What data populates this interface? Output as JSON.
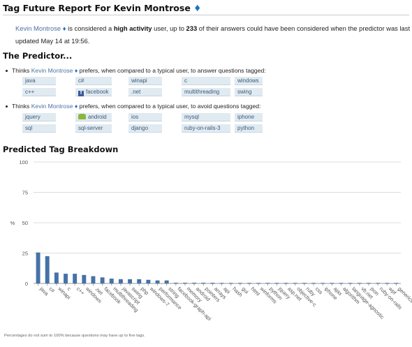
{
  "header": {
    "title": "Tag Future Report For Kevin Montrose",
    "title_icon": "blue-diamond"
  },
  "intro": {
    "user": "Kevin Montrose",
    "text1": " is considered a ",
    "activity": "high activity",
    "text2": " user, up to ",
    "count": "233",
    "text3": " of their answers could have been considered when the predictor was last updated May 14 at 19:56."
  },
  "predictor": {
    "heading": "The Predictor...",
    "prefers_bullet": {
      "prefix": "Thinks ",
      "user": "Kevin Montrose",
      "suffix": " prefers, when compared to a typical user, to answer questions tagged:"
    },
    "prefers_tags": [
      "java",
      "c#",
      "winapi",
      "c",
      "windows",
      "c++",
      "facebook",
      ".net",
      "multithreading",
      "swing"
    ],
    "avoids_bullet": {
      "prefix": "Thinks ",
      "user": "Kevin Montrose",
      "suffix": " prefers, when compared to a typical user, to avoid questions tagged:"
    },
    "avoids_tags": [
      "jquery",
      "android",
      "ios",
      "mysql",
      "iphone",
      "sql",
      "sql-server",
      "django",
      "ruby-on-rails-3",
      "python"
    ]
  },
  "breakdown": {
    "heading": "Predicted Tag Breakdown",
    "footnote": "Percentages do not sum to 100% because questions may have up to five tags."
  },
  "colors": {
    "bar": "#4572a7",
    "tag_bg": "#e0eaf1",
    "link": "#4a72a6",
    "diamond": "#1a73c7"
  },
  "chart_data": {
    "type": "bar",
    "title": "",
    "xlabel": "",
    "ylabel": "%",
    "ylim": [
      0,
      100
    ],
    "yticks": [
      0,
      25,
      50,
      75,
      100
    ],
    "grid": true,
    "categories": [
      "java",
      "c#",
      "winapi",
      "c",
      "c++",
      "windows",
      ".net",
      "facebook",
      "multithreading",
      "javascript",
      "swing",
      "php",
      "windows-7",
      "performance",
      "string",
      "facebook-graph-api",
      "memory",
      "android",
      "pointers",
      "arrays",
      "api",
      "hash",
      "gui",
      "html",
      "winforms",
      "python",
      "jquery",
      "asp.net",
      "objective-c",
      "ruby",
      "css",
      "iphone",
      "ajax",
      "algorithm",
      "language-agnostic",
      "vb.net",
      "json",
      "ruby-on-rails",
      "wpf",
      "generics"
    ],
    "values": [
      25.5,
      22.5,
      9,
      8,
      8,
      7,
      6,
      5,
      4,
      3.5,
      3.5,
      3.5,
      3,
      2.5,
      2.5,
      0.6,
      0.6,
      0.6,
      0.6,
      0.6,
      0.5,
      0.5,
      0.5,
      0.5,
      0.5,
      0.5,
      0.5,
      0.5,
      0.5,
      0.5,
      0.5,
      0.5,
      0.5,
      0.5,
      0.5,
      0.5,
      0.5,
      0.5,
      0.5,
      0.5
    ]
  }
}
